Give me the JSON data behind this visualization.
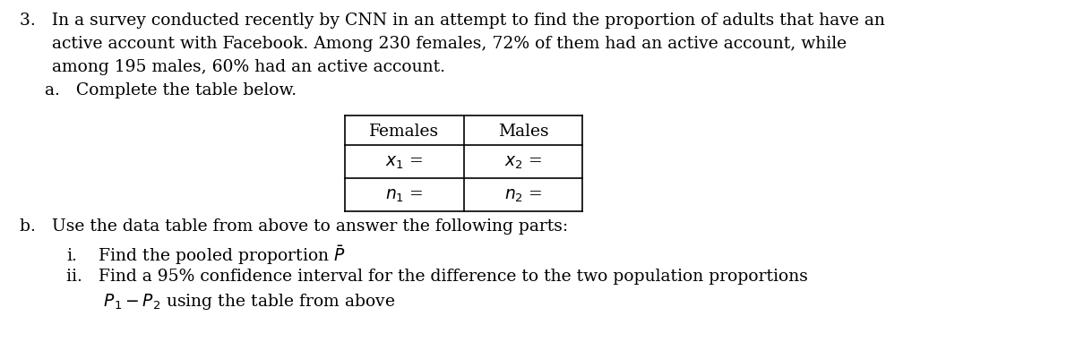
{
  "bg_color": "#ffffff",
  "text_color": "#000000",
  "font_family": "DejaVu Serif",
  "line1": "3.   In a survey conducted recently by CNN in an attempt to find the proportion of adults that have an",
  "line2": "      active account with Facebook. Among 230 females, 72% of them had an active account, while",
  "line3": "      among 195 males, 60% had an active account.",
  "part_a": "a.   Complete the table below.",
  "table_col1_header": "Females",
  "table_col2_header": "Males",
  "table_r1c1": "$x_1$ =",
  "table_r1c2": "$x_2$ =",
  "table_r2c1": "$n_1$ =",
  "table_r2c2": "$n_2$ =",
  "part_b": "b.   Use the data table from above to answer the following parts:",
  "part_i": "i.    Find the pooled proportion $\\bar{P}$",
  "part_ii_1": "ii.   Find a 95% confidence interval for the difference to the two population proportions",
  "part_ii_2": "       $P_1 - P_2$ using the table from above",
  "fs": 13.5,
  "fig_w": 12.0,
  "fig_h": 4.02,
  "dpi": 100
}
